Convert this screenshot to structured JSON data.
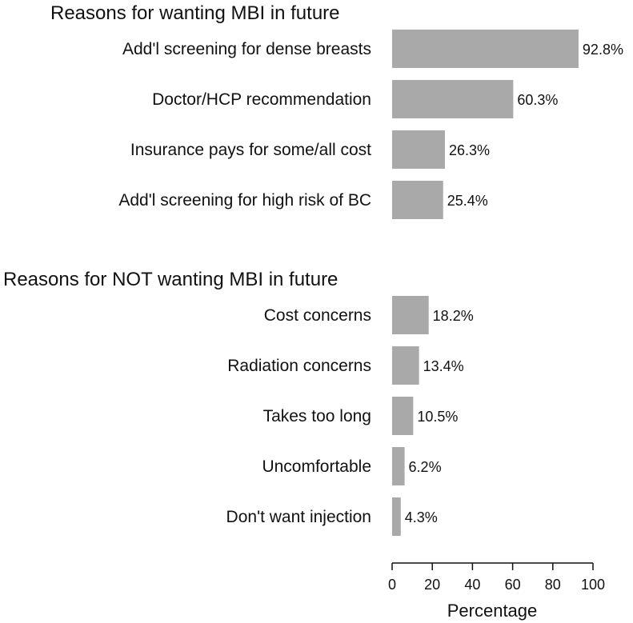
{
  "chart_data": {
    "type": "bar",
    "orientation": "horizontal",
    "bar_color": "#a9a9a9",
    "xlabel": "Percentage",
    "xlim": [
      0,
      100
    ],
    "xticks": [
      "0",
      "20",
      "40",
      "60",
      "80",
      "100"
    ],
    "groups": [
      {
        "heading": "Reasons for wanting MBI in future",
        "categories": [
          "Add'l screening for dense breasts",
          "Doctor/HCP recommendation",
          "Insurance pays for some/all cost",
          "Add'l screening for high risk of BC"
        ],
        "values": [
          92.8,
          60.3,
          26.3,
          25.4
        ],
        "value_labels": [
          "92.8%",
          "60.3%",
          "26.3%",
          "25.4%"
        ]
      },
      {
        "heading": "Reasons for NOT wanting MBI in future",
        "categories": [
          "Cost concerns",
          "Radiation concerns",
          "Takes too long",
          "Uncomfortable",
          "Don't want injection"
        ],
        "values": [
          18.2,
          13.4,
          10.5,
          6.2,
          4.3
        ],
        "value_labels": [
          "18.2%",
          "13.4%",
          "10.5%",
          "6.2%",
          "4.3%"
        ]
      }
    ]
  }
}
